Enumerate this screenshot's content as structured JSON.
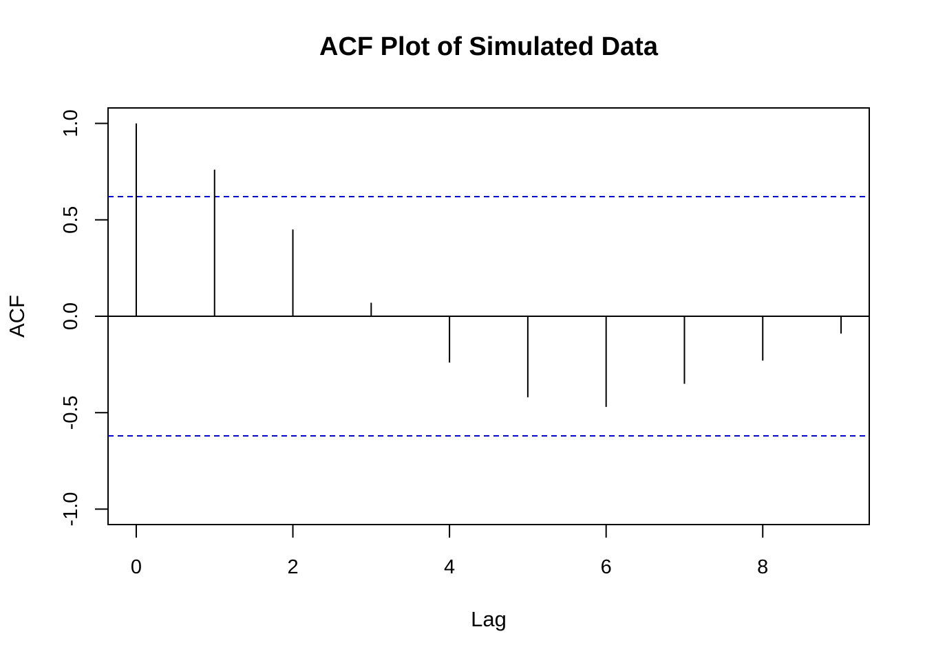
{
  "chart_data": {
    "type": "bar",
    "subtype": "acf-stem",
    "title": "ACF Plot of Simulated Data",
    "xlabel": "Lag",
    "ylabel": "ACF",
    "x": [
      0,
      1,
      2,
      3,
      4,
      5,
      6,
      7,
      8,
      9
    ],
    "values": [
      1.0,
      0.76,
      0.45,
      0.07,
      -0.24,
      -0.42,
      -0.47,
      -0.35,
      -0.23,
      -0.09
    ],
    "xlim": [
      -0.36,
      9.36
    ],
    "ylim": [
      -1.08,
      1.08
    ],
    "x_ticks": [
      0,
      2,
      4,
      6,
      8
    ],
    "x_tick_labels": [
      "0",
      "2",
      "4",
      "6",
      "8"
    ],
    "y_ticks": [
      -1.0,
      -0.5,
      0.0,
      0.5,
      1.0
    ],
    "y_tick_labels": [
      "-1.0",
      "-0.5",
      "0.0",
      "0.5",
      "1.0"
    ],
    "confidence_bounds": [
      0.62,
      -0.62
    ],
    "zero_line": 0,
    "grid": false,
    "legend": "none",
    "colors": {
      "stems": "#000000",
      "confidence": "#0000cd",
      "frame": "#000000"
    }
  }
}
